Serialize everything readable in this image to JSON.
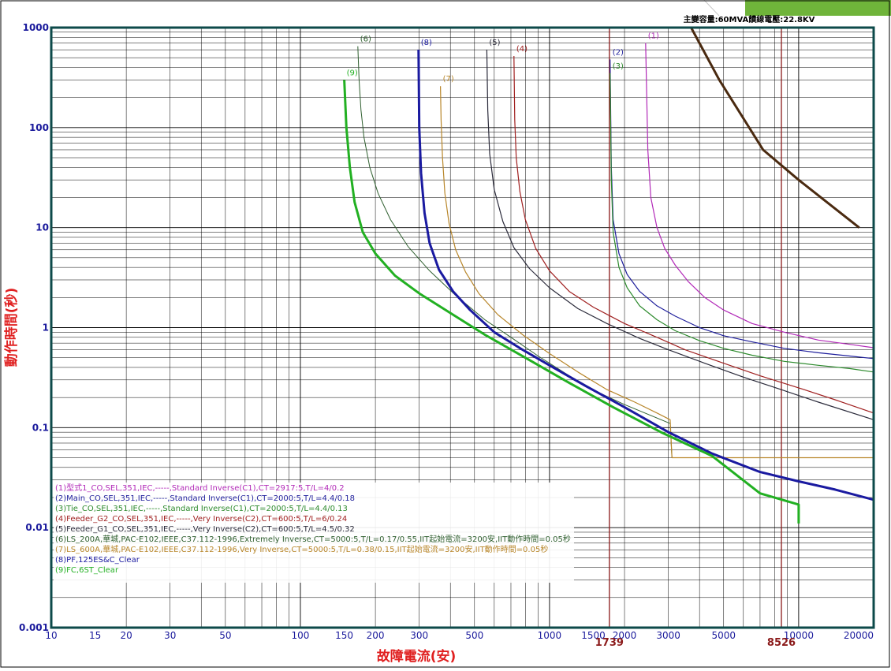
{
  "chart_data": {
    "type": "line",
    "xscale": "log",
    "yscale": "log",
    "xlim": [
      10,
      20000
    ],
    "ylim": [
      0.001,
      1000
    ],
    "grid": true,
    "legend_position": "bottom-left",
    "title": "主變容量:60MVA饋線電壓:22.8KV",
    "xlabel": "故障電流(安)",
    "ylabel": "動作時間(秒)",
    "x_ticks": [
      10,
      15,
      20,
      30,
      50,
      100,
      150,
      200,
      300,
      500,
      1000,
      1500,
      2000,
      3000,
      5000,
      10000,
      20000
    ],
    "x_tick_labels": [
      "10",
      "15",
      "20",
      "30",
      "50",
      "100",
      "150",
      "200",
      "300",
      "500",
      "1000",
      "1500",
      "2000",
      "3000",
      "5000",
      "10000",
      "20000"
    ],
    "y_ticks": [
      0.001,
      0.01,
      0.1,
      1,
      10,
      100,
      1000
    ],
    "y_tick_labels": [
      "0.001",
      "0.01",
      "0.1",
      "1",
      "10",
      "100",
      "1000"
    ],
    "reference_lines": [
      {
        "x": 1739,
        "label": "1739",
        "color": "#8b1a1a"
      },
      {
        "x": 8526,
        "label": "8526",
        "color": "#8b1a1a"
      }
    ],
    "series": [
      {
        "name": "(1)型式1_CO,SEL,351,IEC,-----,Standard Inverse(C1),CT=2917:5,T/L=4/0.2",
        "label": "(1)",
        "color": "#b22ab8",
        "width": 1.2,
        "x": [
          2430,
          2480,
          2550,
          2700,
          2900,
          3200,
          3600,
          4200,
          5000,
          6500,
          8750,
          12000,
          16000,
          20000
        ],
        "y": [
          700,
          60,
          20,
          10,
          6.2,
          4.2,
          2.9,
          2.0,
          1.5,
          1.1,
          0.9,
          0.75,
          0.68,
          0.63
        ]
      },
      {
        "name": "(2)Main_CO,SEL,351,IEC,-----,Standard Inverse(C1),CT=2000:5,T/L=4.4/0.18",
        "label": "(2)",
        "color": "#1f1f9c",
        "width": 1.2,
        "x": [
          1750,
          1770,
          1800,
          1900,
          2050,
          2300,
          2700,
          3200,
          4000,
          5000,
          6500,
          8750,
          12000,
          16000,
          20000
        ],
        "y": [
          480,
          40,
          12,
          5.5,
          3.4,
          2.3,
          1.65,
          1.3,
          1.0,
          0.83,
          0.72,
          0.62,
          0.56,
          0.52,
          0.49
        ]
      },
      {
        "name": "(3)Tie_CO,SEL,351,IEC,-----,Standard Inverse(C1),CT=2000:5,T/L=4.4/0.13",
        "label": "(3)",
        "color": "#2e8b2e",
        "width": 1.2,
        "x": [
          1750,
          1770,
          1800,
          1900,
          2050,
          2300,
          2700,
          3200,
          4000,
          5000,
          6500,
          8750,
          12000,
          16000,
          20000
        ],
        "y": [
          350,
          30,
          9,
          4.0,
          2.5,
          1.65,
          1.2,
          0.93,
          0.74,
          0.62,
          0.53,
          0.46,
          0.42,
          0.39,
          0.36
        ]
      },
      {
        "name": "(4)Feeder_G2_CO,SEL,351,IEC,-----,Very Inverse(C2),CT=600:5,T/L=6/0.24",
        "label": "(4)",
        "color": "#a02020",
        "width": 1.2,
        "x": [
          720,
          725,
          735,
          760,
          800,
          880,
          1000,
          1200,
          1500,
          2000,
          2700,
          3500,
          5000,
          7000,
          10000,
          14000,
          20000
        ],
        "y": [
          520,
          120,
          50,
          23,
          12,
          6.2,
          3.7,
          2.3,
          1.6,
          1.1,
          0.8,
          0.6,
          0.44,
          0.33,
          0.25,
          0.19,
          0.14
        ]
      },
      {
        "name": "(5)Feeder_G1_CO,SEL,351,IEC,-----,Very Inverse(C2),CT=600:5,T/L=4.5/0.32",
        "label": "(5)",
        "color": "#2a2a3a",
        "width": 1.2,
        "x": [
          560,
          565,
          575,
          600,
          650,
          720,
          830,
          1000,
          1300,
          1700,
          2300,
          3000,
          4200,
          6000,
          8500,
          12000,
          20000
        ],
        "y": [
          600,
          150,
          55,
          24,
          11.5,
          6.3,
          3.9,
          2.5,
          1.55,
          1.1,
          0.78,
          0.6,
          0.44,
          0.32,
          0.24,
          0.18,
          0.12
        ]
      },
      {
        "name": "(6)LS_200A,華城,PAC-E102,IEEE,C37.112-1996,Extremely Inverse,CT=5000:5,T/L=0.17/0.55,IIT起始電流=3200安,IIT動作時間=0.05秒",
        "label": "(6)",
        "color": "#2f5f2f",
        "width": 1.0,
        "x": [
          170,
          172,
          175,
          180,
          190,
          205,
          230,
          270,
          330,
          420,
          550,
          700,
          900,
          1200,
          1600,
          2000,
          2500,
          3050,
          3100,
          20000
        ],
        "y": [
          650,
          300,
          150,
          80,
          40,
          22,
          12,
          6.5,
          3.7,
          2.1,
          1.2,
          0.8,
          0.52,
          0.33,
          0.22,
          0.17,
          0.135,
          0.11,
          0.05,
          0.05
        ]
      },
      {
        "name": "(7)LS_600A,華城,PAC-E102,IEEE,C37.112-1996,Very Inverse,CT=5000:5,T/L=0.38/0.15,IIT起始電流=3200安,IIT動作時間=0.05秒",
        "label": "(7)",
        "color": "#b8862a",
        "width": 1.2,
        "x": [
          365,
          367,
          372,
          380,
          395,
          420,
          460,
          520,
          620,
          780,
          1000,
          1300,
          1700,
          2200,
          2700,
          3050,
          3100,
          20000
        ],
        "y": [
          260,
          120,
          50,
          22,
          11,
          6,
          3.6,
          2.2,
          1.35,
          0.85,
          0.55,
          0.36,
          0.24,
          0.18,
          0.14,
          0.12,
          0.05,
          0.05
        ]
      },
      {
        "name": "(8)PF,125ES&C_Clear",
        "label": "(8)",
        "color": "#1a1aa0",
        "width": 3,
        "x": [
          298,
          300,
          305,
          315,
          330,
          360,
          410,
          480,
          600,
          780,
          1000,
          1400,
          2000,
          3000,
          4500,
          7000,
          10000,
          14000,
          20000
        ],
        "y": [
          600,
          100,
          35,
          14,
          7,
          3.8,
          2.3,
          1.5,
          0.9,
          0.6,
          0.42,
          0.26,
          0.16,
          0.09,
          0.055,
          0.036,
          0.029,
          0.024,
          0.019
        ]
      },
      {
        "name": "(9)FC,6ST_Clear",
        "label": "(9)",
        "color": "#22b022",
        "width": 3,
        "x": [
          150,
          153,
          158,
          165,
          178,
          200,
          240,
          300,
          400,
          550,
          800,
          1200,
          1800,
          2800,
          4500,
          7000,
          10000,
          10000
        ],
        "y": [
          300,
          100,
          40,
          18,
          9,
          5.5,
          3.3,
          2.2,
          1.4,
          0.85,
          0.5,
          0.28,
          0.16,
          0.09,
          0.052,
          0.022,
          0.017,
          0.011
        ]
      },
      {
        "name": "",
        "label": "",
        "color": "#4a2a10",
        "width": 3,
        "x": [
          3700,
          4800,
          7200,
          10000,
          17500
        ],
        "y": [
          1000,
          300,
          60,
          30,
          10
        ]
      }
    ]
  }
}
